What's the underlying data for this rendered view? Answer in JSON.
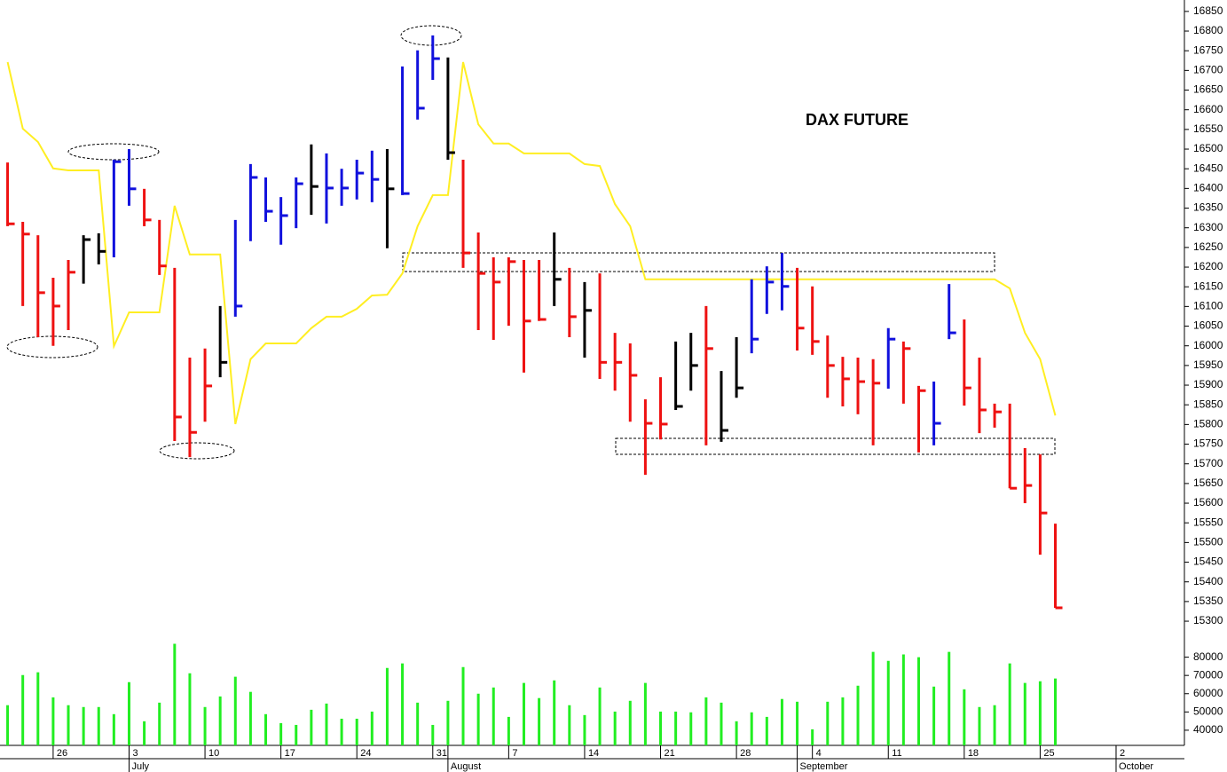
{
  "chart_data": {
    "type": "ohlc",
    "title": "DAX FUTURE",
    "xlim": [
      -0.5,
      77.5
    ],
    "xticks": [
      {
        "value": 3,
        "label": "26"
      },
      {
        "value": 8,
        "label": "3"
      },
      {
        "value": 13,
        "label": "10"
      },
      {
        "value": 18,
        "label": "17"
      },
      {
        "value": 23,
        "label": "24"
      },
      {
        "value": 28,
        "label": "31"
      },
      {
        "value": 33,
        "label": "7"
      },
      {
        "value": 38,
        "label": "14"
      },
      {
        "value": 43,
        "label": "21"
      },
      {
        "value": 48,
        "label": "28"
      },
      {
        "value": 53,
        "label": "4"
      },
      {
        "value": 58,
        "label": "11"
      },
      {
        "value": 63,
        "label": "18"
      },
      {
        "value": 68,
        "label": "25"
      },
      {
        "value": 73,
        "label": "2"
      }
    ],
    "month_ticks": [
      {
        "value": 8,
        "label": "July"
      },
      {
        "value": 29,
        "label": "August"
      },
      {
        "value": 52,
        "label": "September"
      },
      {
        "value": 73,
        "label": "October"
      }
    ],
    "ylim": [
      15255,
      16879
    ],
    "yticks": [
      16850,
      16800,
      16750,
      16700,
      16650,
      16600,
      16550,
      16500,
      16450,
      16400,
      16350,
      16300,
      16250,
      16200,
      16150,
      16100,
      16050,
      16000,
      15950,
      15900,
      15850,
      15800,
      15750,
      15700,
      15650,
      15600,
      15550,
      15500,
      15450,
      15400,
      15350,
      15300
    ],
    "high": [
      16466,
      16315,
      16281,
      16173,
      16218,
      16281,
      16286,
      16473,
      16500,
      16399,
      16320,
      16198,
      15970,
      15993,
      16101,
      16320,
      16462,
      16428,
      16378,
      16428,
      16512,
      16489,
      16450,
      16473,
      16496,
      16500,
      16710,
      16751,
      16789,
      16733,
      16473,
      16288,
      16225,
      16225,
      16218,
      16218,
      16288,
      16198,
      16162,
      16184,
      16033,
      16006,
      15864,
      15920,
      16011,
      16033,
      16101,
      15936,
      16022,
      16169,
      16202,
      16236,
      16198,
      16151,
      16026,
      15972,
      15970,
      15966,
      16045,
      16011,
      15898,
      15909,
      16157,
      16067,
      15970,
      15853,
      15853,
      15740,
      15724,
      15548
    ],
    "low": [
      16304,
      16101,
      16022,
      16000,
      16040,
      16158,
      16207,
      16225,
      16356,
      16304,
      16180,
      15758,
      15717,
      15807,
      15920,
      16074,
      16266,
      16315,
      16257,
      16299,
      16333,
      16311,
      16356,
      16372,
      16365,
      16248,
      16383,
      16575,
      16676,
      16473,
      16198,
      16040,
      16015,
      16051,
      15932,
      16063,
      16101,
      16022,
      15970,
      15916,
      15886,
      15807,
      15672,
      15762,
      15837,
      15886,
      15747,
      15756,
      15868,
      15981,
      16081,
      16090,
      15988,
      15977,
      15868,
      15846,
      15826,
      15747,
      15891,
      15853,
      15729,
      15747,
      16017,
      15848,
      15778,
      15792,
      15638,
      15600,
      15469,
      15334
    ],
    "close": [
      16310,
      16284,
      16135,
      16101,
      16187,
      16270,
      16240,
      16468,
      16399,
      16320,
      16203,
      15819,
      15780,
      15898,
      15958,
      16101,
      16428,
      16342,
      16331,
      16412,
      16405,
      16401,
      16401,
      16439,
      16423,
      16399,
      16387,
      16604,
      16730,
      16491,
      16236,
      16184,
      16162,
      16214,
      16063,
      16067,
      16169,
      16074,
      16090,
      15958,
      15958,
      15925,
      15803,
      15801,
      15846,
      15950,
      15993,
      15785,
      15893,
      16017,
      16162,
      16151,
      16045,
      16011,
      15950,
      15916,
      15909,
      15905,
      16017,
      15993,
      15886,
      15803,
      16033,
      15893,
      15837,
      15832,
      15638,
      15645,
      15575,
      15334
    ],
    "bar_colors": [
      "#ee1111",
      "#ee1111",
      "#ee1111",
      "#ee1111",
      "#ee1111",
      "#000000",
      "#000000",
      "#1111dd",
      "#1111dd",
      "#ee1111",
      "#ee1111",
      "#ee1111",
      "#ee1111",
      "#ee1111",
      "#000000",
      "#1111dd",
      "#1111dd",
      "#1111dd",
      "#1111dd",
      "#1111dd",
      "#000000",
      "#1111dd",
      "#1111dd",
      "#1111dd",
      "#1111dd",
      "#000000",
      "#1111dd",
      "#1111dd",
      "#1111dd",
      "#000000",
      "#ee1111",
      "#ee1111",
      "#ee1111",
      "#ee1111",
      "#ee1111",
      "#ee1111",
      "#000000",
      "#ee1111",
      "#000000",
      "#ee1111",
      "#ee1111",
      "#ee1111",
      "#ee1111",
      "#ee1111",
      "#000000",
      "#000000",
      "#ee1111",
      "#000000",
      "#000000",
      "#1111dd",
      "#1111dd",
      "#1111dd",
      "#ee1111",
      "#ee1111",
      "#ee1111",
      "#ee1111",
      "#ee1111",
      "#ee1111",
      "#1111dd",
      "#ee1111",
      "#ee1111",
      "#1111dd",
      "#1111dd",
      "#ee1111",
      "#ee1111",
      "#ee1111",
      "#ee1111",
      "#ee1111",
      "#ee1111",
      "#ee1111"
    ],
    "indicator": {
      "color": "#ffee22",
      "values": [
        16721,
        16552,
        16518,
        16451,
        16446,
        16446,
        16446,
        15999,
        16085,
        16085,
        16085,
        16356,
        16232,
        16232,
        16232,
        15801,
        15966,
        16006,
        16006,
        16006,
        16045,
        16074,
        16074,
        16094,
        16128,
        16130,
        16184,
        16304,
        16383,
        16383,
        16721,
        16563,
        16514,
        16514,
        16489,
        16489,
        16489,
        16489,
        16462,
        16457,
        16360,
        16304,
        16169,
        16169,
        16169,
        16169,
        16169,
        16169,
        16169,
        16169,
        16169,
        16169,
        16169,
        16169,
        16169,
        16169,
        16169,
        16169,
        16169,
        16169,
        16169,
        16169,
        16169,
        16169,
        16169,
        16169,
        16146,
        16033,
        15966,
        15823
      ]
    },
    "volume": {
      "color": "#22ee22",
      "ylim": [
        31700,
        90000
      ],
      "yticks": [
        80000,
        70000,
        60000,
        50000,
        40000
      ],
      "values": [
        53700,
        70200,
        71700,
        58000,
        53700,
        52700,
        52700,
        48800,
        66300,
        44900,
        55100,
        87300,
        71200,
        52700,
        58500,
        69300,
        61000,
        48800,
        43900,
        42900,
        51200,
        54600,
        46300,
        46300,
        50200,
        74100,
        76600,
        55100,
        42900,
        56100,
        74600,
        60000,
        63400,
        47300,
        65900,
        57600,
        67300,
        53700,
        48300,
        63400,
        50200,
        56100,
        65900,
        50200,
        50200,
        49800,
        58000,
        55100,
        44900,
        49800,
        47300,
        57100,
        55600,
        40500,
        55600,
        58000,
        64400,
        82900,
        78000,
        81500,
        80000,
        63900,
        82900,
        62400,
        52700,
        53700,
        76600,
        65900,
        66800,
        68300
      ]
    }
  }
}
